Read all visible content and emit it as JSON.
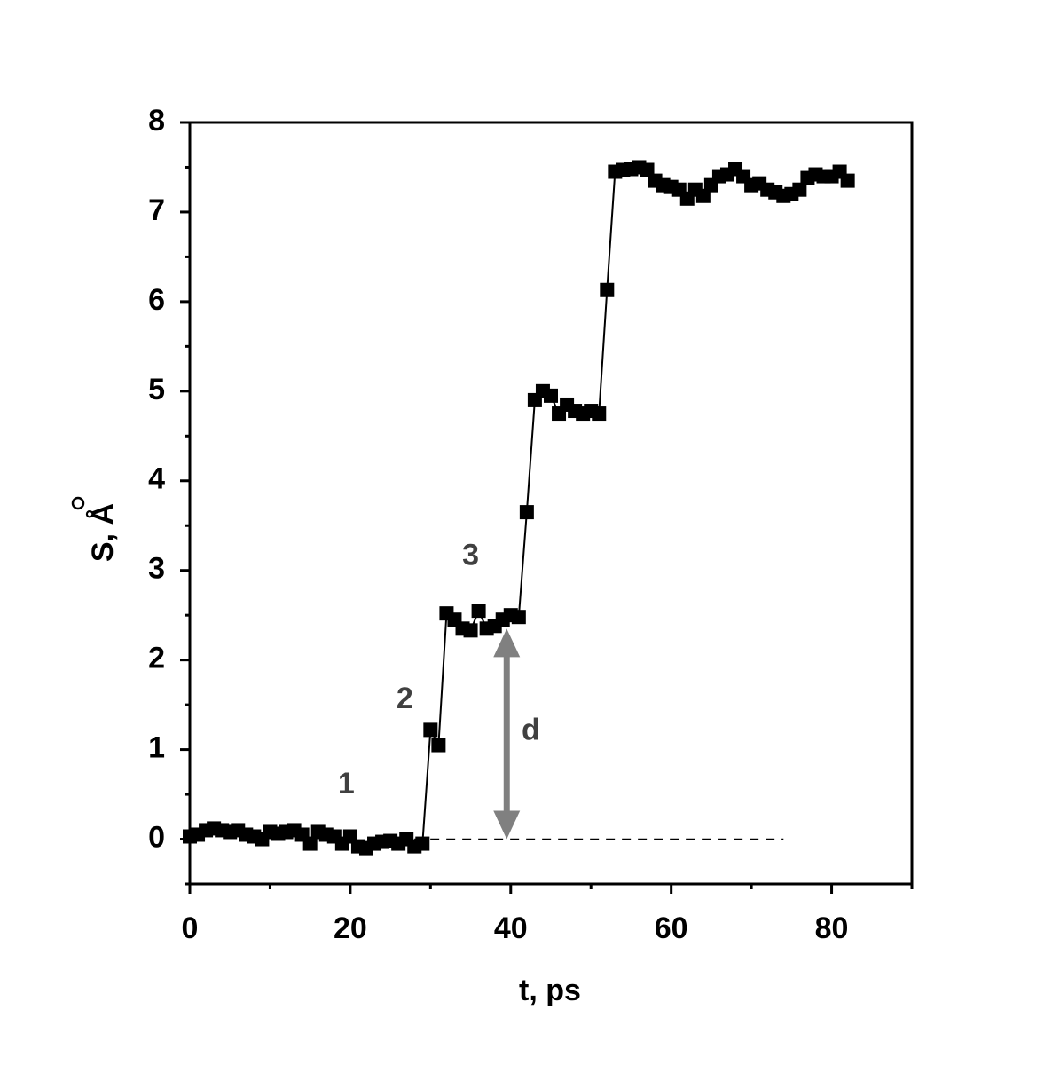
{
  "chart_data": {
    "type": "line",
    "xlabel": "t, ps",
    "ylabel": "S, Å",
    "x": [
      0,
      1,
      2,
      3,
      4,
      5,
      6,
      7,
      8,
      9,
      10,
      11,
      12,
      13,
      14,
      15,
      16,
      17,
      18,
      19,
      20,
      21,
      22,
      23,
      24,
      25,
      26,
      27,
      28,
      29,
      30,
      31,
      32,
      33,
      34,
      35,
      36,
      37,
      38,
      39,
      40,
      41,
      42,
      43,
      44,
      45,
      46,
      47,
      48,
      49,
      50,
      51,
      52,
      53,
      54,
      55,
      56,
      57,
      58,
      59,
      60,
      61,
      62,
      63,
      64,
      65,
      66,
      67,
      68,
      69,
      70,
      71,
      72,
      73,
      74,
      75,
      76,
      77,
      78,
      79,
      80,
      81,
      82
    ],
    "series": [
      {
        "color": "#000000",
        "values": [
          0.03,
          0.05,
          0.1,
          0.12,
          0.1,
          0.08,
          0.1,
          0.05,
          0.03,
          0.0,
          0.08,
          0.06,
          0.08,
          0.1,
          0.05,
          -0.05,
          0.08,
          0.05,
          0.03,
          -0.05,
          0.03,
          -0.08,
          -0.1,
          -0.05,
          -0.03,
          -0.02,
          -0.05,
          0.0,
          -0.08,
          -0.05,
          1.22,
          1.05,
          2.52,
          2.45,
          2.35,
          2.33,
          2.55,
          2.35,
          2.38,
          2.45,
          2.5,
          2.48,
          3.65,
          4.9,
          5.0,
          4.95,
          4.75,
          4.85,
          4.78,
          4.75,
          4.78,
          4.75,
          6.13,
          7.45,
          7.47,
          7.48,
          7.5,
          7.47,
          7.35,
          7.3,
          7.28,
          7.25,
          7.15,
          7.25,
          7.18,
          7.3,
          7.4,
          7.42,
          7.48,
          7.4,
          7.3,
          7.32,
          7.25,
          7.22,
          7.18,
          7.2,
          7.25,
          7.38,
          7.42,
          7.4,
          7.4,
          7.45,
          7.35
        ]
      }
    ],
    "xlim": [
      0,
      90
    ],
    "xticks": [
      0,
      20,
      40,
      60,
      80
    ],
    "xminorticks": [
      10,
      30,
      50,
      70,
      90
    ],
    "ylim": [
      -0.5,
      8
    ],
    "yticks": [
      0,
      1,
      2,
      3,
      4,
      5,
      6,
      7,
      8
    ],
    "yminorticks": [
      -0.5,
      0.5,
      1.5,
      2.5,
      3.5,
      4.5,
      5.5,
      6.5,
      7.5
    ],
    "annotations": [
      {
        "text": "1",
        "x": 19.5,
        "y": 0.6
      },
      {
        "text": "2",
        "x": 26.8,
        "y": 1.55
      },
      {
        "text": "3",
        "x": 35,
        "y": 3.15
      },
      {
        "text": "d",
        "x": 42.5,
        "y": 1.2
      }
    ],
    "baseline": {
      "y": 0,
      "x": [
        26,
        74
      ]
    },
    "arrow": {
      "x": 39.5,
      "y": [
        0,
        2.35
      ],
      "color": "#808080"
    }
  }
}
